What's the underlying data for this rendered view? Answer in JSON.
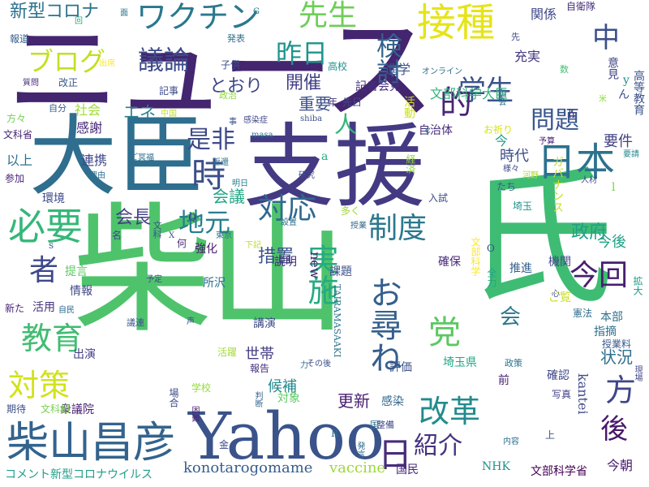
{
  "words": [
    {
      "text": "柴山",
      "color": "#4ec36b"
    },
    {
      "text": "ニュース",
      "color": "#44256f"
    },
    {
      "text": "大臣",
      "color": "#2f6e8e"
    },
    {
      "text": "支援",
      "color": "#443a83"
    },
    {
      "text": "氏",
      "color": "#3fbc73"
    },
    {
      "text": "Yahoo",
      "color": "#3a538b"
    },
    {
      "text": "柴山昌彦",
      "color": "#33638d"
    },
    {
      "text": "ワクチン",
      "color": "#2a788e"
    },
    {
      "text": "先生",
      "color": "#6ece58"
    },
    {
      "text": "接種",
      "color": "#e5e419"
    },
    {
      "text": "議論",
      "color": "#3e4c8a"
    },
    {
      "text": "昨日",
      "color": "#1f948c"
    },
    {
      "text": "中",
      "color": "#3d4e8a"
    },
    {
      "text": "学生",
      "color": "#3b528b"
    },
    {
      "text": "検討",
      "color": "#33638d"
    },
    {
      "text": "ブログ",
      "color": "#c2df23"
    },
    {
      "text": "的",
      "color": "#482576"
    },
    {
      "text": "日本",
      "color": "#2c728e"
    },
    {
      "text": "是非",
      "color": "#3e4a89"
    },
    {
      "text": "時",
      "color": "#3c4f8a"
    },
    {
      "text": "必要",
      "color": "#35b779"
    },
    {
      "text": "対応",
      "color": "#31688e"
    },
    {
      "text": "制度",
      "color": "#2a788e"
    },
    {
      "text": "地元",
      "color": "#277f8e"
    },
    {
      "text": "実施",
      "color": "#25ab82"
    },
    {
      "text": "お尋ね",
      "color": "#355f8d"
    },
    {
      "text": "今回",
      "color": "#481f70"
    },
    {
      "text": "者",
      "color": "#3e4989"
    },
    {
      "text": "教育",
      "color": "#40bd72"
    },
    {
      "text": "党",
      "color": "#5cc863"
    },
    {
      "text": "会",
      "color": "#2a778e"
    },
    {
      "text": "方",
      "color": "#404688"
    },
    {
      "text": "対策",
      "color": "#d2e21b"
    },
    {
      "text": "改革",
      "color": "#228b8d"
    },
    {
      "text": "後",
      "color": "#48186a"
    },
    {
      "text": "紹介",
      "color": "#46337f"
    },
    {
      "text": "日",
      "color": "#472d7b"
    },
    {
      "text": "問題",
      "color": "#39558c"
    },
    {
      "text": "状況",
      "color": "#2e6f8e"
    },
    {
      "text": "konotarogomame",
      "color": "#365d8d"
    },
    {
      "text": "vaccine",
      "color": "#9dd93b"
    },
    {
      "text": "新型コロナ",
      "color": "#2c718e"
    },
    {
      "text": "コメント新型コロナウイルス",
      "color": "#1f9e89"
    },
    {
      "text": "措置",
      "color": "#3b528b"
    },
    {
      "text": "new",
      "color": "#482475"
    },
    {
      "text": "開催",
      "color": "#424086"
    },
    {
      "text": "重要",
      "color": "#3c508b"
    },
    {
      "text": "とおり",
      "color": "#3f4788"
    },
    {
      "text": "エネ",
      "color": "#27808e"
    },
    {
      "text": "会議",
      "color": "#21a685"
    },
    {
      "text": "会長",
      "color": "#433e85"
    },
    {
      "text": "政府",
      "color": "#1fa088"
    },
    {
      "text": "今後",
      "color": "#1fa187"
    },
    {
      "text": "要件",
      "color": "#424186"
    },
    {
      "text": "時代",
      "color": "#3c4f8a"
    },
    {
      "text": "更新",
      "color": "#482071"
    },
    {
      "text": "世帯",
      "color": "#433d84"
    },
    {
      "text": "候補",
      "color": "#23898e"
    },
    {
      "text": "文部科学大臣",
      "color": "#31b57b"
    },
    {
      "text": "記者会見",
      "color": "#46307e"
    },
    {
      "text": "進学",
      "color": "#3a548c"
    },
    {
      "text": "充実",
      "color": "#453882"
    },
    {
      "text": "関係",
      "color": "#3f4889"
    },
    {
      "text": "自衛隊",
      "color": "#46307e"
    },
    {
      "text": "社会",
      "color": "#a0da39"
    },
    {
      "text": "感謝",
      "color": "#482878"
    },
    {
      "text": "連携",
      "color": "#3f4889"
    },
    {
      "text": "以上",
      "color": "#2c728e"
    },
    {
      "text": "環境",
      "color": "#3e4a89"
    },
    {
      "text": "提言",
      "color": "#5ec962"
    },
    {
      "text": "情報",
      "color": "#3f4788"
    },
    {
      "text": "活用",
      "color": "#46327e"
    },
    {
      "text": "新た",
      "color": "#482677"
    },
    {
      "text": "出演",
      "color": "#433e85"
    },
    {
      "text": "衆議院",
      "color": "#482173"
    },
    {
      "text": "期待",
      "color": "#3c508b"
    },
    {
      "text": "文科相",
      "color": "#7ad151"
    },
    {
      "text": "学校",
      "color": "#95d840"
    },
    {
      "text": "活躍",
      "color": "#a5db36"
    },
    {
      "text": "対象",
      "color": "#5ec962"
    },
    {
      "text": "感染",
      "color": "#31688e"
    },
    {
      "text": "評価",
      "color": "#3b528b"
    },
    {
      "text": "確認",
      "color": "#3f4788"
    },
    {
      "text": "写真",
      "color": "#424086"
    },
    {
      "text": "国民",
      "color": "#482677"
    },
    {
      "text": "NHK",
      "color": "#21918c"
    },
    {
      "text": "文部科学省",
      "color": "#440154"
    },
    {
      "text": "今朝",
      "color": "#481a6c"
    },
    {
      "text": "本部",
      "color": "#2d708e"
    },
    {
      "text": "指摘",
      "color": "#2d708e"
    },
    {
      "text": "授業料",
      "color": "#38598c"
    },
    {
      "text": "拡大",
      "color": "#1f9a8a"
    },
    {
      "text": "憲法",
      "color": "#2f6c8e"
    },
    {
      "text": "機関",
      "color": "#3f4788"
    },
    {
      "text": "推進",
      "color": "#34608d"
    },
    {
      "text": "確保",
      "color": "#482979"
    },
    {
      "text": "課題",
      "color": "#3b518b"
    },
    {
      "text": "説明",
      "color": "#472a7a"
    },
    {
      "text": "所沢",
      "color": "#2e6e8e"
    },
    {
      "text": "講演",
      "color": "#3e4c8a"
    },
    {
      "text": "報告",
      "color": "#46307e"
    },
    {
      "text": "埼玉県",
      "color": "#21a685"
    },
    {
      "text": "埼玉",
      "color": "#1f948c"
    },
    {
      "text": "入試",
      "color": "#3d4d8a"
    },
    {
      "text": "自治体",
      "color": "#472e7c"
    },
    {
      "text": "ガバナンス",
      "color": "#c8e020"
    },
    {
      "text": "経済",
      "color": "#95d840"
    },
    {
      "text": "活動",
      "color": "#cde11d"
    },
    {
      "text": "高等教育",
      "color": "#3b518b"
    },
    {
      "text": "意見",
      "color": "#414487"
    },
    {
      "text": "文部科学",
      "color": "#fde725"
    },
    {
      "text": "強化",
      "color": "#481b6d"
    },
    {
      "text": "TAIRAMASAAKI",
      "color": "#2c738e"
    },
    {
      "text": "kantei",
      "color": "#3e4989"
    },
    {
      "text": "全力",
      "color": "#22a785"
    },
    {
      "text": "子供",
      "color": "#3c4f8a"
    },
    {
      "text": "高校",
      "color": "#218f8d"
    },
    {
      "text": "発表",
      "color": "#2e6d8e"
    },
    {
      "text": "報道",
      "color": "#355e8d"
    },
    {
      "text": "自分",
      "color": "#33638d"
    },
    {
      "text": "改正",
      "color": "#38598c"
    },
    {
      "text": "質問",
      "color": "#472d7b"
    },
    {
      "text": "方々",
      "color": "#73d056"
    },
    {
      "text": "文科省",
      "color": "#482576"
    },
    {
      "text": "参加",
      "color": "#482878"
    },
    {
      "text": "記事",
      "color": "#3e4c8a"
    },
    {
      "text": "政治",
      "color": "#90d743"
    },
    {
      "text": "先日",
      "color": "#3e4c8a"
    },
    {
      "text": "年",
      "color": "#453781"
    },
    {
      "text": "オンライン",
      "color": "#2e6f8e"
    },
    {
      "text": "中国",
      "color": "#bddf26"
    },
    {
      "text": "感染症",
      "color": "#3f4788"
    },
    {
      "text": "masa",
      "color": "#2c728e"
    },
    {
      "text": "shiba",
      "color": "#3b528b"
    },
    {
      "text": "ご冥福",
      "color": "#2e6d8e"
    },
    {
      "text": "返還",
      "color": "#2c738e"
    },
    {
      "text": "明日",
      "color": "#277e8e"
    },
    {
      "text": "設置",
      "color": "#2c738e"
    },
    {
      "text": "研究",
      "color": "#3d4d8a"
    },
    {
      "text": "お祈り",
      "color": "#d8e219"
    },
    {
      "text": "予算",
      "color": "#482173"
    },
    {
      "text": "河野",
      "color": "#b5de2b"
    },
    {
      "text": "人材",
      "color": "#414487"
    },
    {
      "text": "様々",
      "color": "#3f4889"
    },
    {
      "text": "たち",
      "color": "#365c8d"
    },
    {
      "text": "要請",
      "color": "#23888e"
    },
    {
      "text": "多く",
      "color": "#9dd93b"
    },
    {
      "text": "授業",
      "color": "#31688e"
    },
    {
      "text": "何",
      "color": "#482878"
    },
    {
      "text": "名",
      "color": "#3f4889"
    },
    {
      "text": "文科",
      "color": "#3b528b"
    },
    {
      "text": "東京",
      "color": "#2d708e"
    },
    {
      "text": "予定",
      "color": "#3e4a89"
    },
    {
      "text": "下記",
      "color": "#b8de29"
    },
    {
      "text": "議連",
      "color": "#3a548c"
    },
    {
      "text": "声",
      "color": "#3d4e8a"
    },
    {
      "text": "自民",
      "color": "#2f6c8e"
    },
    {
      "text": "理由",
      "color": "#2d708e"
    },
    {
      "text": "出席",
      "color": "#fde725"
    },
    {
      "text": "今",
      "color": "#1fa188"
    },
    {
      "text": "前",
      "color": "#482071"
    },
    {
      "text": "上",
      "color": "#3c4f8a"
    },
    {
      "text": "金",
      "color": "#3e4a89"
    },
    {
      "text": "場合",
      "color": "#3e4989"
    },
    {
      "text": "困難",
      "color": "#482576"
    },
    {
      "text": "判断",
      "color": "#33638d"
    },
    {
      "text": "その後",
      "color": "#3d4e8a"
    },
    {
      "text": "力",
      "color": "#2c728e"
    },
    {
      "text": "政策",
      "color": "#2c728e"
    },
    {
      "text": "内容",
      "color": "#2c718e"
    },
    {
      "text": "発言",
      "color": "#2e6f8e"
    },
    {
      "text": "整備",
      "color": "#3e4a89"
    },
    {
      "text": "国",
      "color": "#2c738e"
    },
    {
      "text": "現場",
      "color": "#3f4788"
    },
    {
      "text": "心",
      "color": "#3a548c"
    },
    {
      "text": "ご覧",
      "color": "#ccdf1e"
    },
    {
      "text": "国会",
      "color": "#2f6e8e"
    },
    {
      "text": "事",
      "color": "#3b528b"
    },
    {
      "text": "人",
      "color": "#34b679"
    },
    {
      "text": "ん",
      "color": "#3d4e8a"
    },
    {
      "text": "数",
      "color": "#44bf70"
    },
    {
      "text": "先",
      "color": "#3e4989"
    },
    {
      "text": "回",
      "color": "#26ad81"
    },
    {
      "text": "面",
      "color": "#2b758e"
    },
    {
      "text": "G",
      "color": "#2d708e"
    },
    {
      "text": "y",
      "color": "#21918c"
    },
    {
      "text": "h",
      "color": "#453781"
    },
    {
      "text": "l",
      "color": "#7ad151"
    },
    {
      "text": "a",
      "color": "#26ad81"
    },
    {
      "text": "s",
      "color": "#34608d"
    },
    {
      "text": "Q",
      "color": "#46307e"
    },
    {
      "text": "X",
      "color": "#3b528b"
    },
    {
      "text": "O",
      "color": "#3e4c8a"
    },
    {
      "text": "R",
      "color": "#2c728e"
    },
    {
      "text": "c",
      "color": "#2e6f8e"
    },
    {
      "text": "米",
      "color": "#8fd744"
    }
  ]
}
